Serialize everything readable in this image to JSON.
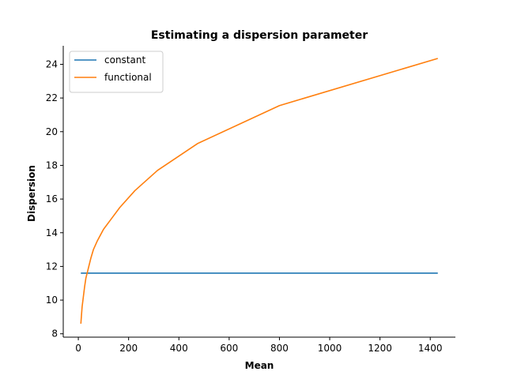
{
  "chart_data": {
    "type": "line",
    "title": "Estimating a dispersion parameter",
    "xlabel": "Mean",
    "ylabel": "Dispersion",
    "xlim": [
      -60,
      1500
    ],
    "ylim": [
      7.8,
      25.1
    ],
    "xticks": [
      0,
      200,
      400,
      600,
      800,
      1000,
      1200,
      1400
    ],
    "yticks": [
      8,
      10,
      12,
      14,
      16,
      18,
      20,
      22,
      24
    ],
    "grid": false,
    "legend_position": "top-left",
    "series": [
      {
        "name": "constant",
        "color": "#1f77b4",
        "x": [
          10,
          1430
        ],
        "y": [
          11.6,
          11.6
        ]
      },
      {
        "name": "functional",
        "color": "#ff7f0e",
        "x": [
          10,
          12,
          15,
          20,
          25,
          30,
          40,
          50,
          60,
          75,
          100,
          130,
          165,
          225,
          315,
          475,
          800,
          1430
        ],
        "y": [
          8.6,
          9.0,
          9.6,
          10.2,
          10.8,
          11.3,
          11.9,
          12.5,
          13.0,
          13.5,
          14.2,
          14.8,
          15.5,
          16.5,
          17.7,
          19.3,
          21.55,
          24.35
        ]
      }
    ]
  }
}
